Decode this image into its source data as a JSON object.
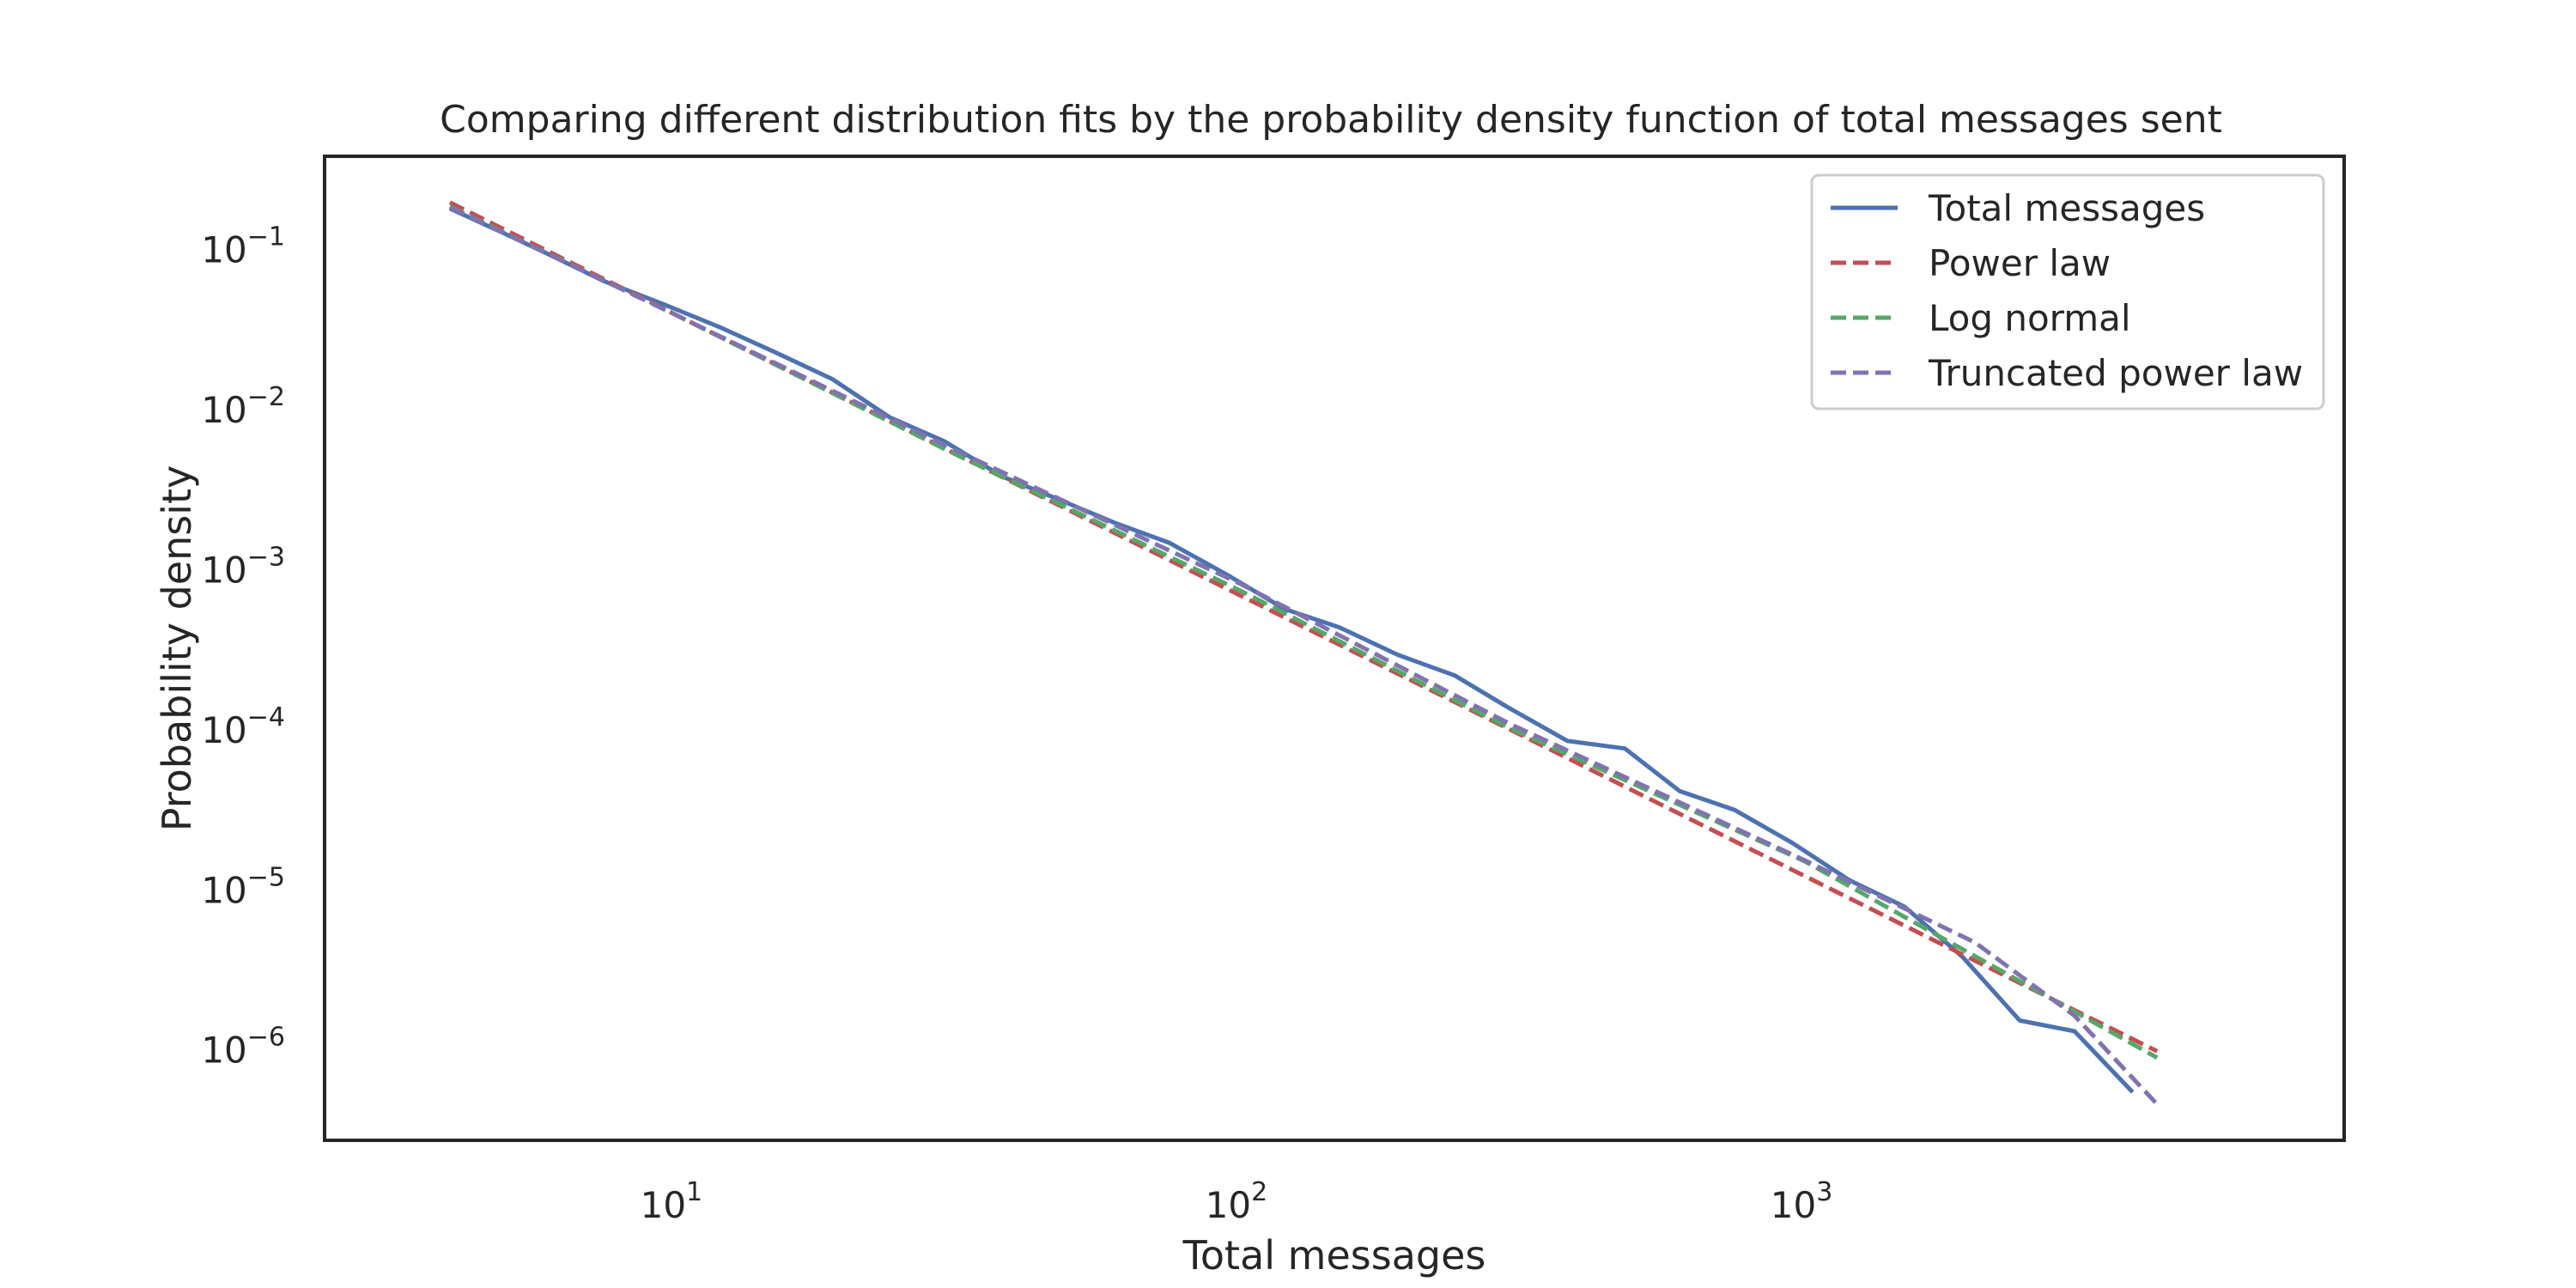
{
  "chart_data": {
    "type": "line",
    "title": "Comparing different distribution fits by the probability density function of total messages sent",
    "xlabel": "Total messages",
    "ylabel": "Probability density",
    "xscale": "log",
    "yscale": "log",
    "xlim": [
      2.4,
      9000
    ],
    "ylim": [
      2.5e-07,
      0.35
    ],
    "grid": false,
    "legend_position": "top-right",
    "x_ticks": [
      {
        "value": 10,
        "base": "10",
        "exp": "1"
      },
      {
        "value": 100,
        "base": "10",
        "exp": "2"
      },
      {
        "value": 1000,
        "base": "10",
        "exp": "3"
      }
    ],
    "y_ticks": [
      {
        "value": 0.1,
        "base": "10",
        "exp": "−1"
      },
      {
        "value": 0.01,
        "base": "10",
        "exp": "−2"
      },
      {
        "value": 0.001,
        "base": "10",
        "exp": "−3"
      },
      {
        "value": 0.0001,
        "base": "10",
        "exp": "−4"
      },
      {
        "value": 1e-05,
        "base": "10",
        "exp": "−5"
      },
      {
        "value": 1e-06,
        "base": "10",
        "exp": "−6"
      }
    ],
    "series": [
      {
        "name": "Total messages",
        "color": "#4c72b0",
        "style": "solid",
        "points": [
          [
            4,
            0.165
          ],
          [
            5,
            0.115
          ],
          [
            6,
            0.085
          ],
          [
            7.5,
            0.058
          ],
          [
            9.5,
            0.042
          ],
          [
            12,
            0.03
          ],
          [
            15,
            0.021
          ],
          [
            19,
            0.0142
          ],
          [
            24,
            0.0082
          ],
          [
            30,
            0.0058
          ],
          [
            38,
            0.0035
          ],
          [
            48,
            0.0025
          ],
          [
            60,
            0.0018
          ],
          [
            75,
            0.00135
          ],
          [
            95,
            0.00085
          ],
          [
            120,
            0.00052
          ],
          [
            150,
            0.0004
          ],
          [
            190,
            0.00027
          ],
          [
            240,
            0.0002
          ],
          [
            300,
            0.000125
          ],
          [
            380,
            7.8e-05
          ],
          [
            480,
            7e-05
          ],
          [
            600,
            3.8e-05
          ],
          [
            750,
            2.9e-05
          ],
          [
            950,
            1.8e-05
          ],
          [
            1200,
            1.05e-05
          ],
          [
            1500,
            7.2e-06
          ],
          [
            1900,
            3.5e-06
          ],
          [
            2400,
            1.4e-06
          ],
          [
            3000,
            1.2e-06
          ],
          [
            3800,
            5e-07
          ]
        ]
      },
      {
        "name": "Power law",
        "color": "#c44e52",
        "style": "dashed",
        "points": [
          [
            4,
            0.18
          ],
          [
            4200,
            9e-07
          ]
        ]
      },
      {
        "name": "Log normal",
        "color": "#55a868",
        "style": "dashed",
        "points": [
          [
            4,
            0.17
          ],
          [
            10,
            0.036
          ],
          [
            30,
            0.0052
          ],
          [
            100,
            0.00068
          ],
          [
            300,
            9.4e-05
          ],
          [
            1000,
            1.38e-05
          ],
          [
            4200,
            8.2e-07
          ]
        ]
      },
      {
        "name": "Truncated power law",
        "color": "#8172b2",
        "style": "dashed",
        "points": [
          [
            4,
            0.168
          ],
          [
            10,
            0.036
          ],
          [
            30,
            0.0055
          ],
          [
            100,
            0.00075
          ],
          [
            300,
            0.0001
          ],
          [
            1000,
            1.4e-05
          ],
          [
            2000,
            4.3e-06
          ],
          [
            3000,
            1.5e-06
          ],
          [
            4200,
            4.2e-07
          ]
        ]
      }
    ]
  }
}
